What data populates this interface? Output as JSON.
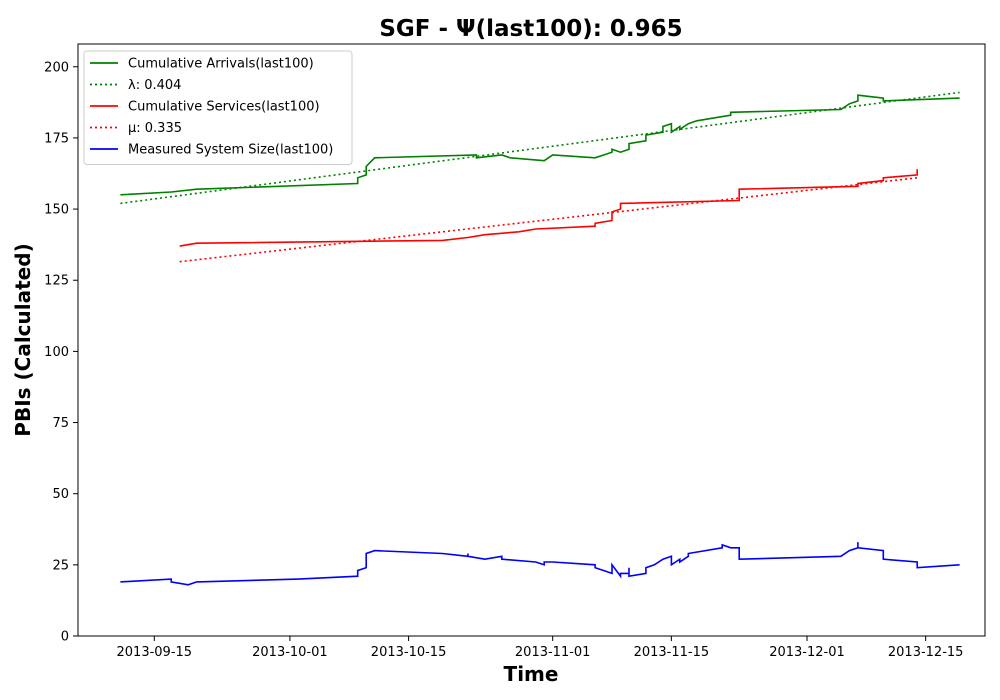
{
  "chart_data": {
    "type": "line",
    "title": "SGF -  Ψ(last100): 0.965",
    "xlabel": "Time",
    "ylabel": "PBIs (Calculated)",
    "x_range": [
      "2013-09-06",
      "2013-12-22"
    ],
    "ylim": [
      0,
      208
    ],
    "x_ticks": [
      "2013-09-15",
      "2013-10-01",
      "2013-10-15",
      "2013-11-01",
      "2013-11-15",
      "2013-12-01",
      "2013-12-15"
    ],
    "y_ticks": [
      0,
      25,
      50,
      75,
      100,
      125,
      150,
      175,
      200
    ],
    "grid": false,
    "legend_position": "upper-left",
    "series": [
      {
        "name": "Cumulative Arrivals(last100)",
        "color": "#008000",
        "style": "solid",
        "points": [
          [
            "2013-09-11",
            155
          ],
          [
            "2013-09-17",
            156
          ],
          [
            "2013-09-20",
            157
          ],
          [
            "2013-10-09",
            159
          ],
          [
            "2013-10-09",
            161
          ],
          [
            "2013-10-10",
            162
          ],
          [
            "2013-10-10",
            165
          ],
          [
            "2013-10-11",
            168
          ],
          [
            "2013-10-23",
            169
          ],
          [
            "2013-10-23",
            168
          ],
          [
            "2013-10-26",
            169
          ],
          [
            "2013-10-27",
            168
          ],
          [
            "2013-10-31",
            167
          ],
          [
            "2013-11-01",
            169
          ],
          [
            "2013-11-06",
            168
          ],
          [
            "2013-11-07",
            169
          ],
          [
            "2013-11-08",
            170
          ],
          [
            "2013-11-08",
            171
          ],
          [
            "2013-11-09",
            170
          ],
          [
            "2013-11-10",
            171
          ],
          [
            "2013-11-10",
            173
          ],
          [
            "2013-11-12",
            174
          ],
          [
            "2013-11-12",
            176
          ],
          [
            "2013-11-14",
            177
          ],
          [
            "2013-11-14",
            179
          ],
          [
            "2013-11-15",
            180
          ],
          [
            "2013-11-15",
            177
          ],
          [
            "2013-11-16",
            179
          ],
          [
            "2013-11-16",
            178
          ],
          [
            "2013-11-17",
            180
          ],
          [
            "2013-11-18",
            181
          ],
          [
            "2013-11-22",
            183
          ],
          [
            "2013-11-22",
            184
          ],
          [
            "2013-12-05",
            185
          ],
          [
            "2013-12-06",
            187
          ],
          [
            "2013-12-07",
            188
          ],
          [
            "2013-12-07",
            190
          ],
          [
            "2013-12-10",
            189
          ],
          [
            "2013-12-10",
            188
          ],
          [
            "2013-12-19",
            189
          ]
        ]
      },
      {
        "name": "λ: 0.404",
        "color": "#008000",
        "style": "dotted",
        "points": [
          [
            "2013-09-11",
            152
          ],
          [
            "2013-12-19",
            191
          ]
        ]
      },
      {
        "name": "Cumulative Services(last100)",
        "color": "#ff0000",
        "style": "solid",
        "points": [
          [
            "2013-09-18",
            137
          ],
          [
            "2013-09-20",
            138
          ],
          [
            "2013-10-19",
            139
          ],
          [
            "2013-10-22",
            140
          ],
          [
            "2013-10-24",
            141
          ],
          [
            "2013-10-28",
            142
          ],
          [
            "2013-10-30",
            143
          ],
          [
            "2013-11-06",
            144
          ],
          [
            "2013-11-06",
            145
          ],
          [
            "2013-11-08",
            146
          ],
          [
            "2013-11-08",
            147
          ],
          [
            "2013-11-08",
            149
          ],
          [
            "2013-11-09",
            150
          ],
          [
            "2013-11-09",
            152
          ],
          [
            "2013-11-23",
            153
          ],
          [
            "2013-11-23",
            157
          ],
          [
            "2013-12-07",
            158
          ],
          [
            "2013-12-07",
            159
          ],
          [
            "2013-12-10",
            160
          ],
          [
            "2013-12-10",
            161
          ],
          [
            "2013-12-14",
            162
          ],
          [
            "2013-12-14",
            164
          ]
        ]
      },
      {
        "name": "μ: 0.335",
        "color": "#ff0000",
        "style": "dotted",
        "points": [
          [
            "2013-09-18",
            131.5
          ],
          [
            "2013-12-14",
            161
          ]
        ]
      },
      {
        "name": "Measured System Size(last100)",
        "color": "#0000ff",
        "style": "solid",
        "points": [
          [
            "2013-09-11",
            19
          ],
          [
            "2013-09-17",
            20
          ],
          [
            "2013-09-17",
            19
          ],
          [
            "2013-09-19",
            18
          ],
          [
            "2013-09-20",
            19
          ],
          [
            "2013-10-02",
            20
          ],
          [
            "2013-10-09",
            21
          ],
          [
            "2013-10-09",
            23
          ],
          [
            "2013-10-10",
            24
          ],
          [
            "2013-10-10",
            29
          ],
          [
            "2013-10-11",
            30
          ],
          [
            "2013-10-19",
            29
          ],
          [
            "2013-10-22",
            28
          ],
          [
            "2013-10-22",
            29
          ],
          [
            "2013-10-22",
            28
          ],
          [
            "2013-10-24",
            27
          ],
          [
            "2013-10-26",
            28
          ],
          [
            "2013-10-26",
            27
          ],
          [
            "2013-10-30",
            26
          ],
          [
            "2013-10-31",
            25
          ],
          [
            "2013-10-31",
            26
          ],
          [
            "2013-11-01",
            26
          ],
          [
            "2013-11-06",
            25
          ],
          [
            "2013-11-06",
            24
          ],
          [
            "2013-11-07",
            23
          ],
          [
            "2013-11-08",
            22
          ],
          [
            "2013-11-08",
            24
          ],
          [
            "2013-11-08",
            25
          ],
          [
            "2013-11-09",
            21
          ],
          [
            "2013-11-09",
            22
          ],
          [
            "2013-11-10",
            22
          ],
          [
            "2013-11-10",
            24
          ],
          [
            "2013-11-10",
            21
          ],
          [
            "2013-11-12",
            22
          ],
          [
            "2013-11-12",
            24
          ],
          [
            "2013-11-13",
            25
          ],
          [
            "2013-11-14",
            27
          ],
          [
            "2013-11-15",
            28
          ],
          [
            "2013-11-15",
            25
          ],
          [
            "2013-11-16",
            27
          ],
          [
            "2013-11-16",
            26
          ],
          [
            "2013-11-17",
            28
          ],
          [
            "2013-11-17",
            29
          ],
          [
            "2013-11-21",
            31
          ],
          [
            "2013-11-21",
            32
          ],
          [
            "2013-11-22",
            31
          ],
          [
            "2013-11-23",
            31
          ],
          [
            "2013-11-23",
            27
          ],
          [
            "2013-12-05",
            28
          ],
          [
            "2013-12-06",
            30
          ],
          [
            "2013-12-07",
            31
          ],
          [
            "2013-12-07",
            33
          ],
          [
            "2013-12-07",
            31
          ],
          [
            "2013-12-10",
            30
          ],
          [
            "2013-12-10",
            27
          ],
          [
            "2013-12-14",
            26
          ],
          [
            "2013-12-14",
            24
          ],
          [
            "2013-12-19",
            25
          ]
        ]
      }
    ]
  }
}
